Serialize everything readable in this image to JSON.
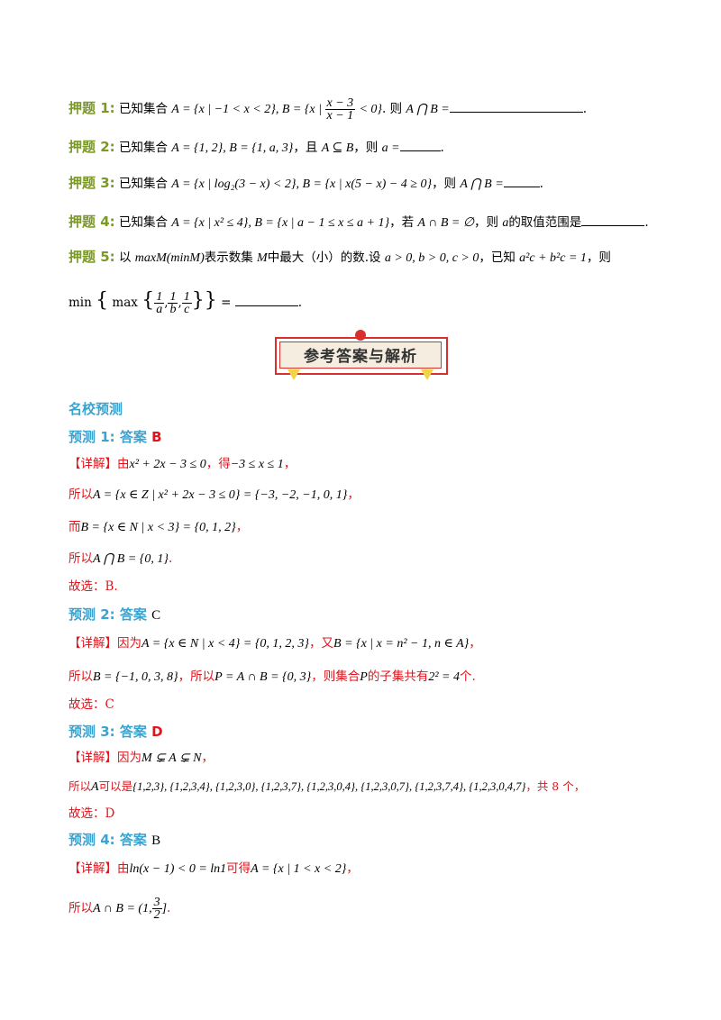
{
  "problems": [
    {
      "label": "押题 1:",
      "prefix": "已知集合",
      "math": "A = {x | −1 < x < 2}, B = {x | ",
      "frac_num": "x − 3",
      "frac_den": "x − 1",
      "math2": "< 0}",
      "suffix": ". 则",
      "math3": "A ⋂ B =",
      "end": "."
    },
    {
      "label": "押题 2:",
      "prefix": "已知集合",
      "math": "A = {1, 2}, B = {1, a, 3}",
      "mid": "，且",
      "math2": "A ⊆ B",
      "mid2": "，则",
      "math3": "a =",
      "end": "."
    },
    {
      "label": "押题 3:",
      "prefix": "已知集合",
      "math": "A = {x | log₂(3 − x) < 2}, B = {x | x(5 − x) − 4 ≥ 0}",
      "mid": "，则",
      "math2": "A ⋂ B =",
      "end": "."
    },
    {
      "label": "押题 4:",
      "prefix": "已知集合",
      "math": "A = {x | x² ≤ 4}, B = {x | a − 1 ≤ x ≤ a + 1}",
      "mid": "，若",
      "math2": "A ∩ B = ∅",
      "mid2": "，则",
      "math3": "a",
      "mid3": "的取值范围是",
      "end": "."
    },
    {
      "label": "押题 5:",
      "prefix": "以",
      "math": "maxM(minM)",
      "mid": "表示数集",
      "math2": "M",
      "mid2": "中最大（小）的数.设",
      "math3": "a > 0, b > 0, c > 0",
      "mid3": "，已知",
      "math4": "a²c + b²c = 1",
      "end": "，则"
    }
  ],
  "problem5_line2": {
    "min": "min",
    "max": "max",
    "fracs": [
      "1",
      "a",
      "1",
      "b",
      "1",
      "c"
    ],
    "eq": "=",
    "end": "."
  },
  "banner_title": "参考答案与解析",
  "section_title": "名校预测",
  "answers": [
    {
      "header": "预测 1:  答案",
      "letter": "B",
      "lines": [
        {
          "tag": "【详解】",
          "text": "由",
          "math": "x² + 2x − 3 ≤ 0",
          "t2": "，得",
          "math2": "−3 ≤ x ≤ 1",
          "t3": "，"
        },
        {
          "text": "所以",
          "math": "A = {x ∈ Z | x² + 2x − 3 ≤ 0} = {−3, −2, −1, 0, 1}",
          "t2": "，"
        },
        {
          "text": "而",
          "math": "B = {x ∈ N | x < 3} = {0, 1, 2}",
          "t2": "，"
        },
        {
          "text": "所以",
          "math": "A ⋂ B = {0, 1}",
          "t2": "."
        },
        {
          "text": "故选：B."
        }
      ]
    },
    {
      "header": "预测 2:  答案",
      "letter": "C",
      "lines": [
        {
          "tag": "【详解】",
          "text": "因为",
          "math": "A = {x ∈ N | x < 4} = {0, 1, 2, 3}",
          "t2": "，又",
          "math2": "B = {x | x = n² − 1, n ∈ A}",
          "t3": "，"
        },
        {
          "text": "所以",
          "math": "B = {−1, 0, 3, 8}",
          "t2": "，所以",
          "math2": "P = A ∩ B = {0, 3}",
          "t3": "，则集合",
          "math3": "P",
          "t4": "的子集共有",
          "math4": "2² = 4",
          "t5": "个."
        },
        {
          "text": "故选：C"
        }
      ]
    },
    {
      "header": "预测 3:  答案",
      "letter": "D",
      "lines": [
        {
          "tag": "【详解】",
          "text": "因为",
          "math": "M ⊊ A ⊊ N",
          "t2": "，"
        },
        {
          "text": "所以",
          "math": "A",
          "t2": "可以是",
          "math2": "{1,2,3}, {1,2,3,4}, {1,2,3,0}, {1,2,3,7}, {1,2,3,0,4}, {1,2,3,0,7}, {1,2,3,7,4}, {1,2,3,0,4,7}",
          "t3": "，共 8 个，"
        },
        {
          "text": "故选：D"
        }
      ]
    },
    {
      "header": "预测 4:  答案",
      "letter": "B",
      "lines": [
        {
          "tag": "【详解】",
          "text": "由",
          "math": "ln(x − 1) < 0 = ln1",
          "t2": "可得",
          "math2": "A = {x | 1 < x < 2}",
          "t3": "，"
        },
        {
          "text": "所以",
          "math": "A ∩ B = (1,",
          "frac_num": "3",
          "frac_den": "2",
          "math2": "]",
          "t2": "."
        }
      ]
    }
  ]
}
